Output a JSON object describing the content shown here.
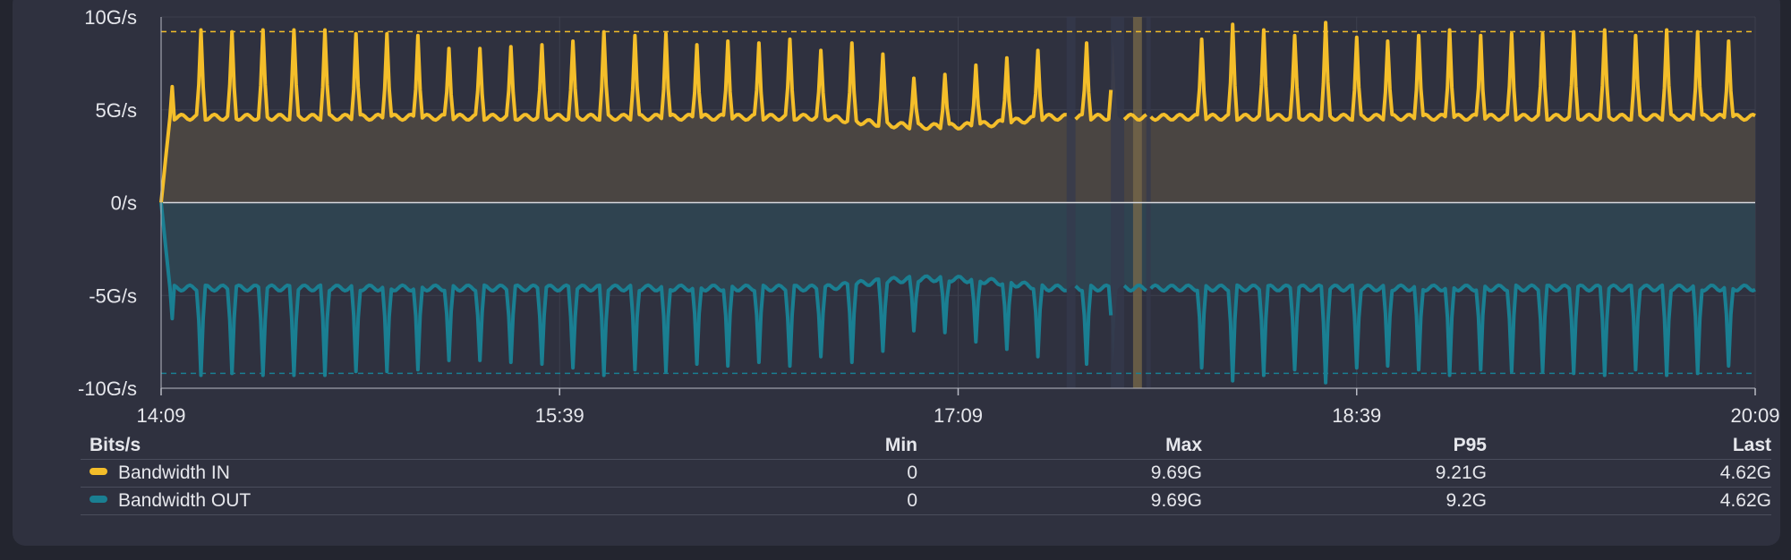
{
  "chart_data": {
    "type": "area",
    "y_ticks": [
      "10G/s",
      "5G/s",
      "0/s",
      "-5G/s",
      "-10G/s"
    ],
    "y_tick_values": [
      10,
      5,
      0,
      -5,
      -10
    ],
    "ylim": [
      -10,
      10
    ],
    "x_ticks": [
      "14:09",
      "15:39",
      "17:09",
      "18:39",
      "20:09"
    ],
    "x_range_minutes": [
      0,
      360
    ],
    "gridlines": true,
    "p95_lines": [
      9.21,
      -9.2
    ],
    "highlight_band_minutes": [
      219.5,
      221.5
    ],
    "gaps_minutes": [
      [
        204.5,
        206.5
      ],
      [
        214.5,
        217.5
      ],
      [
        222.5,
        223.5
      ]
    ],
    "series": [
      {
        "name": "Bandwidth IN",
        "color": "#f4be2a",
        "base": 4.6,
        "peaks_minutes": [
          2,
          9,
          16,
          23,
          30,
          37,
          44,
          51,
          58,
          65,
          72,
          79,
          86,
          93,
          100,
          107,
          114,
          121,
          128,
          135,
          142,
          149,
          156,
          163,
          170,
          177,
          184,
          191,
          198,
          209,
          215,
          235,
          242,
          249,
          256,
          263,
          270,
          277,
          284,
          291,
          298,
          305,
          312,
          319,
          326,
          333,
          340,
          347,
          354
        ],
        "peak_values": [
          9.5,
          9.3,
          9.2,
          9.3,
          9.3,
          9.3,
          9.1,
          9.1,
          9.0,
          8.3,
          8.3,
          8.4,
          8.5,
          8.7,
          9.2,
          9.0,
          9.1,
          8.5,
          8.7,
          8.6,
          8.8,
          8.2,
          8.6,
          8.0,
          6.7,
          6.9,
          7.4,
          7.8,
          8.2,
          8.6,
          8.7,
          8.8,
          9.6,
          9.3,
          9.0,
          9.7,
          8.9,
          8.7,
          9.0,
          9.3,
          9.0,
          9.1,
          9.1,
          9.2,
          9.3,
          9.0,
          9.3,
          9.2,
          8.7
        ]
      },
      {
        "name": "Bandwidth OUT",
        "color": "#1a7f92",
        "base": -4.6,
        "peaks_minutes": [
          2,
          9,
          16,
          23,
          30,
          37,
          44,
          51,
          58,
          65,
          72,
          79,
          86,
          93,
          100,
          107,
          114,
          121,
          128,
          135,
          142,
          149,
          156,
          163,
          170,
          177,
          184,
          191,
          198,
          209,
          215,
          235,
          242,
          249,
          256,
          263,
          270,
          277,
          284,
          291,
          298,
          305,
          312,
          319,
          326,
          333,
          340,
          347,
          354
        ],
        "peak_values": [
          -9.5,
          -9.3,
          -9.2,
          -9.3,
          -9.3,
          -9.3,
          -9.1,
          -9.1,
          -9.0,
          -8.5,
          -8.5,
          -8.6,
          -8.7,
          -8.9,
          -9.3,
          -9.0,
          -9.1,
          -8.7,
          -8.8,
          -8.6,
          -8.8,
          -8.3,
          -8.6,
          -8.0,
          -6.9,
          -7.0,
          -7.5,
          -7.9,
          -8.3,
          -8.7,
          -8.7,
          -8.9,
          -9.6,
          -9.3,
          -9.0,
          -9.7,
          -8.9,
          -8.8,
          -9.0,
          -9.3,
          -9.0,
          -9.1,
          -9.1,
          -9.2,
          -9.3,
          -9.0,
          -9.3,
          -9.2,
          -8.8
        ]
      }
    ]
  },
  "legend": {
    "unit_header": "Bits/s",
    "columns": [
      "Min",
      "Max",
      "P95",
      "Last"
    ],
    "rows": [
      {
        "name": "Bandwidth IN",
        "color": "#f4be2a",
        "min": "0",
        "max": "9.69G",
        "p95": "9.21G",
        "last": "4.62G"
      },
      {
        "name": "Bandwidth OUT",
        "color": "#1a7f92",
        "min": "0",
        "max": "9.69G",
        "p95": "9.2G",
        "last": "4.62G"
      }
    ]
  }
}
